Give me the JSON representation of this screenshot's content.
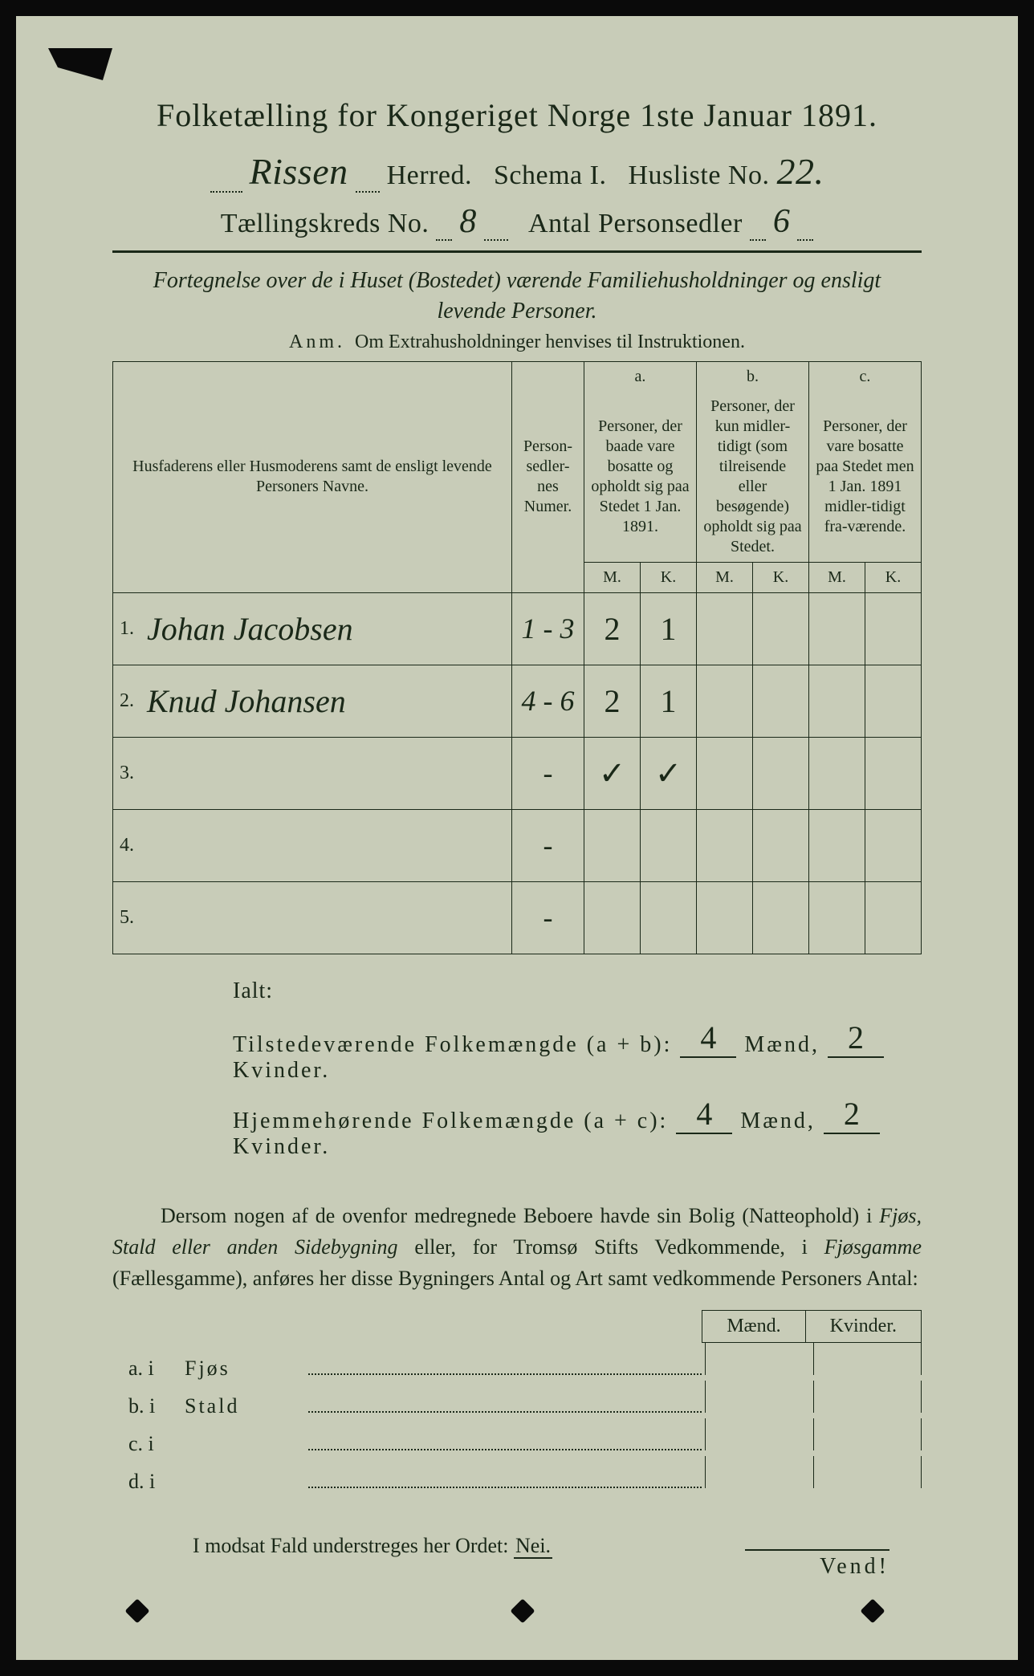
{
  "colors": {
    "paper": "#c8ccb8",
    "ink": "#1a2818",
    "background": "#0a0a0a"
  },
  "header": {
    "title": "Folketælling for Kongeriget Norge 1ste Januar 1891.",
    "herred_value": "Rissen",
    "herred_label": "Herred.",
    "schema_label": "Schema I.",
    "husliste_label": "Husliste No.",
    "husliste_value": "22.",
    "kreds_label": "Tællingskreds No.",
    "kreds_value": "8",
    "antal_label": "Antal Personsedler",
    "antal_value": "6"
  },
  "subtitle": {
    "line1": "Fortegnelse over de i Huset (Bostedet) værende Familiehusholdninger og ensligt",
    "line2": "levende Personer.",
    "anm_label": "Anm.",
    "anm_text": "Om Extrahusholdninger henvises til Instruktionen."
  },
  "table": {
    "col_names": "Husfaderens eller Husmoderens samt de ensligt levende Personers Navne.",
    "col_numer": "Person-sedler-nes Numer.",
    "col_a_label": "a.",
    "col_a_text": "Personer, der baade vare bosatte og opholdt sig paa Stedet 1 Jan. 1891.",
    "col_b_label": "b.",
    "col_b_text": "Personer, der kun midler-tidigt (som tilreisende eller besøgende) opholdt sig paa Stedet.",
    "col_c_label": "c.",
    "col_c_text": "Personer, der vare bosatte paa Stedet men 1 Jan. 1891 midler-tidigt fra-værende.",
    "m": "M.",
    "k": "K.",
    "rows": [
      {
        "n": "1.",
        "name": "Johan Jacobsen",
        "numer": "1 - 3",
        "a_m": "2",
        "a_k": "1",
        "b_m": "",
        "b_k": "",
        "c_m": "",
        "c_k": ""
      },
      {
        "n": "2.",
        "name": "Knud Johansen",
        "numer": "4 - 6",
        "a_m": "2",
        "a_k": "1",
        "b_m": "",
        "b_k": "",
        "c_m": "",
        "c_k": ""
      },
      {
        "n": "3.",
        "name": "",
        "numer": "-",
        "a_m": "✓",
        "a_k": "✓",
        "b_m": "",
        "b_k": "",
        "c_m": "",
        "c_k": ""
      },
      {
        "n": "4.",
        "name": "",
        "numer": "-",
        "a_m": "",
        "a_k": "",
        "b_m": "",
        "b_k": "",
        "c_m": "",
        "c_k": ""
      },
      {
        "n": "5.",
        "name": "",
        "numer": "-",
        "a_m": "",
        "a_k": "",
        "b_m": "",
        "b_k": "",
        "c_m": "",
        "c_k": ""
      }
    ]
  },
  "totals": {
    "ialt": "Ialt:",
    "line1_label": "Tilstedeværende Folkemængde (a + b):",
    "line2_label": "Hjemmehørende Folkemængde (a + c):",
    "maend": "Mænd,",
    "kvinder": "Kvinder.",
    "t_m": "4",
    "t_k": "2",
    "h_m": "4",
    "h_k": "2"
  },
  "paragraph": {
    "text1": "Dersom nogen af de ovenfor medregnede Beboere havde sin Bolig (Natteophold) i ",
    "it1": "Fjøs, Stald eller anden Sidebygning",
    "text2": " eller, for Tromsø Stifts Vedkommende, i ",
    "it2": "Fjøsgamme",
    "text3": " (Fællesgamme), anføres her disse Bygningers Antal og Art samt vedkommende Personers Antal:"
  },
  "mk_section": {
    "maend": "Mænd.",
    "kvinder": "Kvinder.",
    "rows": [
      {
        "lab": "a.  i",
        "what": "Fjøs"
      },
      {
        "lab": "b.  i",
        "what": "Stald"
      },
      {
        "lab": "c.  i",
        "what": ""
      },
      {
        "lab": "d.  i",
        "what": ""
      }
    ]
  },
  "nei": {
    "text": "I modsat Fald understreges her Ordet: ",
    "word": "Nei."
  },
  "vend": "Vend!"
}
